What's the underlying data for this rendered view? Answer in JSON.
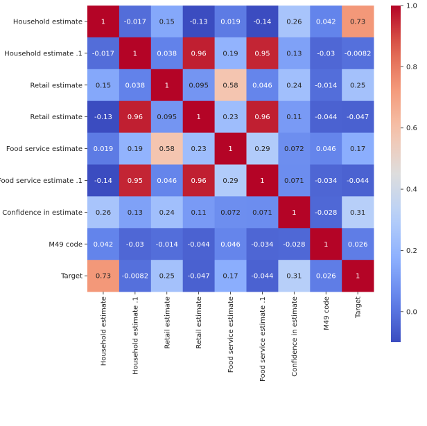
{
  "chart_data": {
    "type": "heatmap",
    "title": "",
    "xlabel": "",
    "ylabel": "",
    "colormap": "coolwarm",
    "vmin": -0.1,
    "vmax": 1.0,
    "labels": [
      "Household estimate",
      "Household estimate .1",
      "Retail estimate",
      "Retail estimate",
      "Food service estimate",
      "Food service estimate .1",
      "Confidence in estimate",
      "M49 code",
      "Target"
    ],
    "values": [
      [
        1,
        -0.017,
        0.15,
        -0.13,
        0.019,
        -0.14,
        0.26,
        0.042,
        0.73
      ],
      [
        -0.017,
        1,
        0.038,
        0.96,
        0.19,
        0.95,
        0.13,
        -0.03,
        -0.0082
      ],
      [
        0.15,
        0.038,
        1,
        0.095,
        0.58,
        0.046,
        0.24,
        -0.014,
        0.25
      ],
      [
        -0.13,
        0.96,
        0.095,
        1,
        0.23,
        0.96,
        0.11,
        -0.044,
        -0.047
      ],
      [
        0.019,
        0.19,
        0.58,
        0.23,
        1,
        0.29,
        0.072,
        0.046,
        0.17
      ],
      [
        -0.14,
        0.95,
        0.046,
        0.96,
        0.29,
        1,
        0.071,
        -0.034,
        -0.044
      ],
      [
        0.26,
        0.13,
        0.24,
        0.11,
        0.072,
        0.071,
        1,
        -0.028,
        0.31
      ],
      [
        0.042,
        -0.03,
        -0.014,
        -0.044,
        0.046,
        -0.034,
        -0.028,
        1,
        0.026
      ],
      [
        0.73,
        -0.0082,
        0.25,
        -0.047,
        0.17,
        -0.044,
        0.31,
        0.026,
        1
      ]
    ],
    "annotations": [
      [
        "1",
        "-0.017",
        "0.15",
        "-0.13",
        "0.019",
        "-0.14",
        "0.26",
        "0.042",
        "0.73"
      ],
      [
        "-0.017",
        "1",
        "0.038",
        "0.96",
        "0.19",
        "0.95",
        "0.13",
        "-0.03",
        "-0.0082"
      ],
      [
        "0.15",
        "0.038",
        "1",
        "0.095",
        "0.58",
        "0.046",
        "0.24",
        "-0.014",
        "0.25"
      ],
      [
        "-0.13",
        "0.96",
        "0.095",
        "1",
        "0.23",
        "0.96",
        "0.11",
        "-0.044",
        "-0.047"
      ],
      [
        "0.019",
        "0.19",
        "0.58",
        "0.23",
        "1",
        "0.29",
        "0.072",
        "0.046",
        "0.17"
      ],
      [
        "-0.14",
        "0.95",
        "0.046",
        "0.96",
        "0.29",
        "1",
        "0.071",
        "-0.034",
        "-0.044"
      ],
      [
        "0.26",
        "0.13",
        "0.24",
        "0.11",
        "0.072",
        "0.071",
        "1",
        "-0.028",
        "0.31"
      ],
      [
        "0.042",
        "-0.03",
        "-0.014",
        "-0.044",
        "0.046",
        "-0.034",
        "-0.028",
        "1",
        "0.026"
      ],
      [
        "0.73",
        "-0.0082",
        "0.25",
        "-0.047",
        "0.17",
        "-0.044",
        "0.31",
        "0.026",
        "1"
      ]
    ],
    "colorbar": {
      "ticks": [
        0.0,
        0.2,
        0.4,
        0.6,
        0.8,
        1.0
      ],
      "tick_labels": [
        "0.0",
        "0.2",
        "0.4",
        "0.6",
        "0.8",
        "1.0"
      ]
    }
  }
}
